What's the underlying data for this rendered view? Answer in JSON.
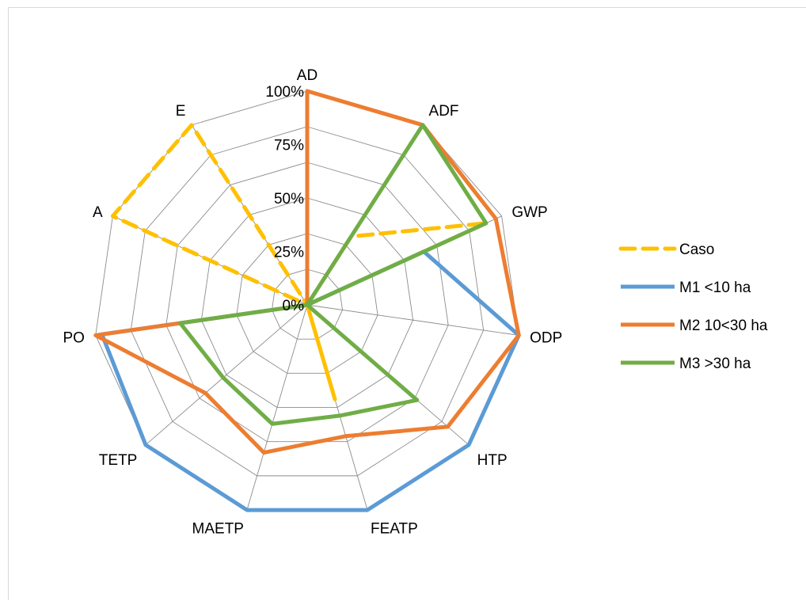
{
  "chart_data": {
    "type": "radar",
    "title": "",
    "axes": [
      "AD",
      "ADF",
      "GWP",
      "ODP",
      "HTP",
      "FEATP",
      "MAETP",
      "TETP",
      "PO",
      "A",
      "E"
    ],
    "radial_ticks": [
      "0%",
      "25%",
      "50%",
      "75%",
      "100%"
    ],
    "radial_range": [
      0,
      1
    ],
    "grid": true,
    "legend_position": "right",
    "series": [
      {
        "name": "Caso",
        "color": "#ffc000",
        "dash": true,
        "values": [
          0.0,
          0.38,
          0.92,
          0.0,
          0.0,
          0.46,
          0.0,
          0.0,
          0.0,
          1.0,
          1.0
        ]
      },
      {
        "name": "M1 <10 ha",
        "color": "#5b9bd5",
        "dash": false,
        "values": [
          1.0,
          0.0,
          0.6,
          1.0,
          1.0,
          1.0,
          1.0,
          1.0,
          0.97,
          0.0,
          0.0
        ]
      },
      {
        "name": "M2 10<30 ha",
        "color": "#ed7d31",
        "dash": false,
        "values": [
          1.0,
          1.0,
          0.97,
          1.0,
          0.87,
          0.64,
          0.72,
          0.63,
          1.0,
          0.0,
          0.0
        ]
      },
      {
        "name": "M3 >30 ha",
        "color": "#70ad47",
        "dash": false,
        "values": [
          0.0,
          1.0,
          0.92,
          0.0,
          0.68,
          0.54,
          0.58,
          0.52,
          0.6,
          0.0,
          0.0
        ]
      }
    ]
  }
}
